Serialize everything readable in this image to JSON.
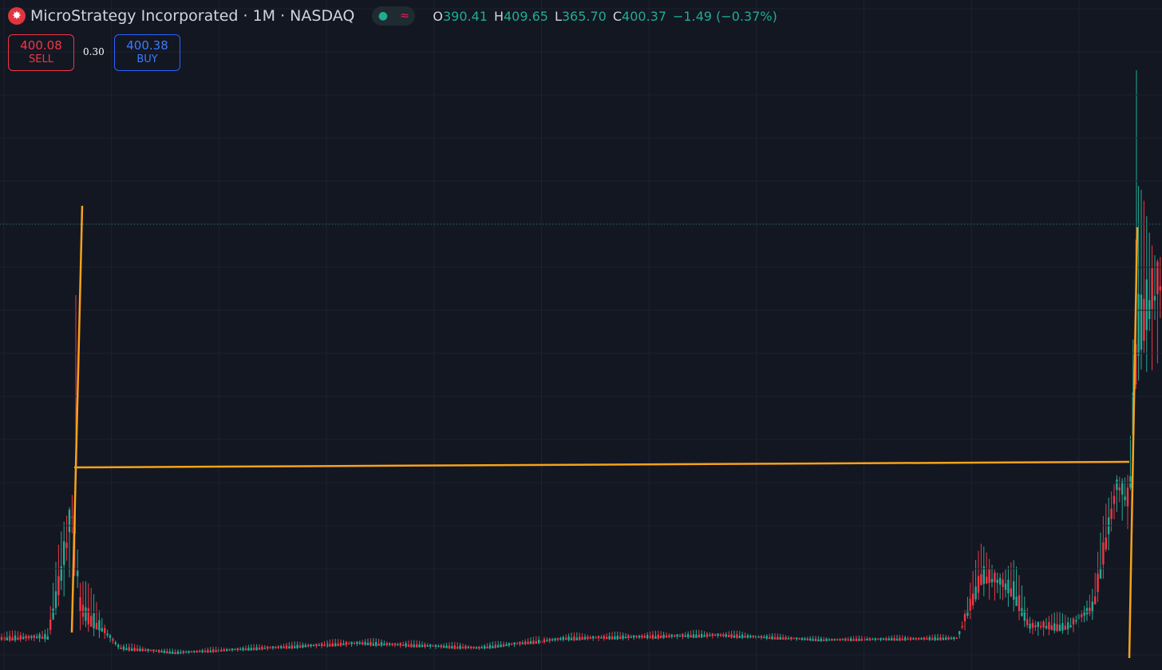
{
  "header": {
    "title": "MicroStrategy Incorporated · 1M · NASDAQ",
    "ohlc": [
      {
        "label": "O",
        "value": "390.41"
      },
      {
        "label": "H",
        "value": "409.65"
      },
      {
        "label": "L",
        "value": "365.70"
      },
      {
        "label": "C",
        "value": "400.37"
      }
    ],
    "change": "−1.49 (−0.37%)"
  },
  "trade": {
    "sell": {
      "price": "400.08",
      "label": "SELL"
    },
    "spread": "0.30",
    "buy": {
      "price": "400.38",
      "label": "BUY"
    }
  }
}
